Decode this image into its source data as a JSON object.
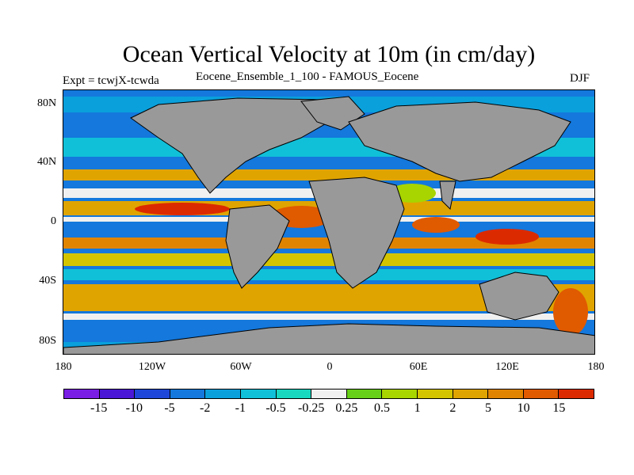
{
  "title": "Ocean Vertical Velocity at 10m (in cm/day)",
  "subtitle_left": "Expt = tcwjX-tcwda",
  "subtitle_center": "Eocene_Ensemble_1_100 - FAMOUS_Eocene",
  "subtitle_right": "DJF",
  "lat_ticks": [
    "80N",
    "40N",
    "0",
    "40S",
    "80S"
  ],
  "lon_ticks": [
    "180",
    "120W",
    "60W",
    "0",
    "60E",
    "120E",
    "180"
  ],
  "colorbar": {
    "colors": [
      "#7a1ee6",
      "#4a17d6",
      "#1e46d8",
      "#1478dc",
      "#0aa0dc",
      "#10c0d8",
      "#18d8c0",
      "#f0f0f0",
      "#66d018",
      "#a8d400",
      "#d4c400",
      "#e0a400",
      "#e08400",
      "#e05a00",
      "#dc2a00"
    ],
    "labels": [
      "-15",
      "-10",
      "-5",
      "-2",
      "-1",
      "-0.5",
      "-0.25",
      "0.25",
      "0.5",
      "1",
      "2",
      "5",
      "10",
      "15"
    ]
  },
  "map_colors": {
    "land": "#999999",
    "coast": "#000000"
  }
}
